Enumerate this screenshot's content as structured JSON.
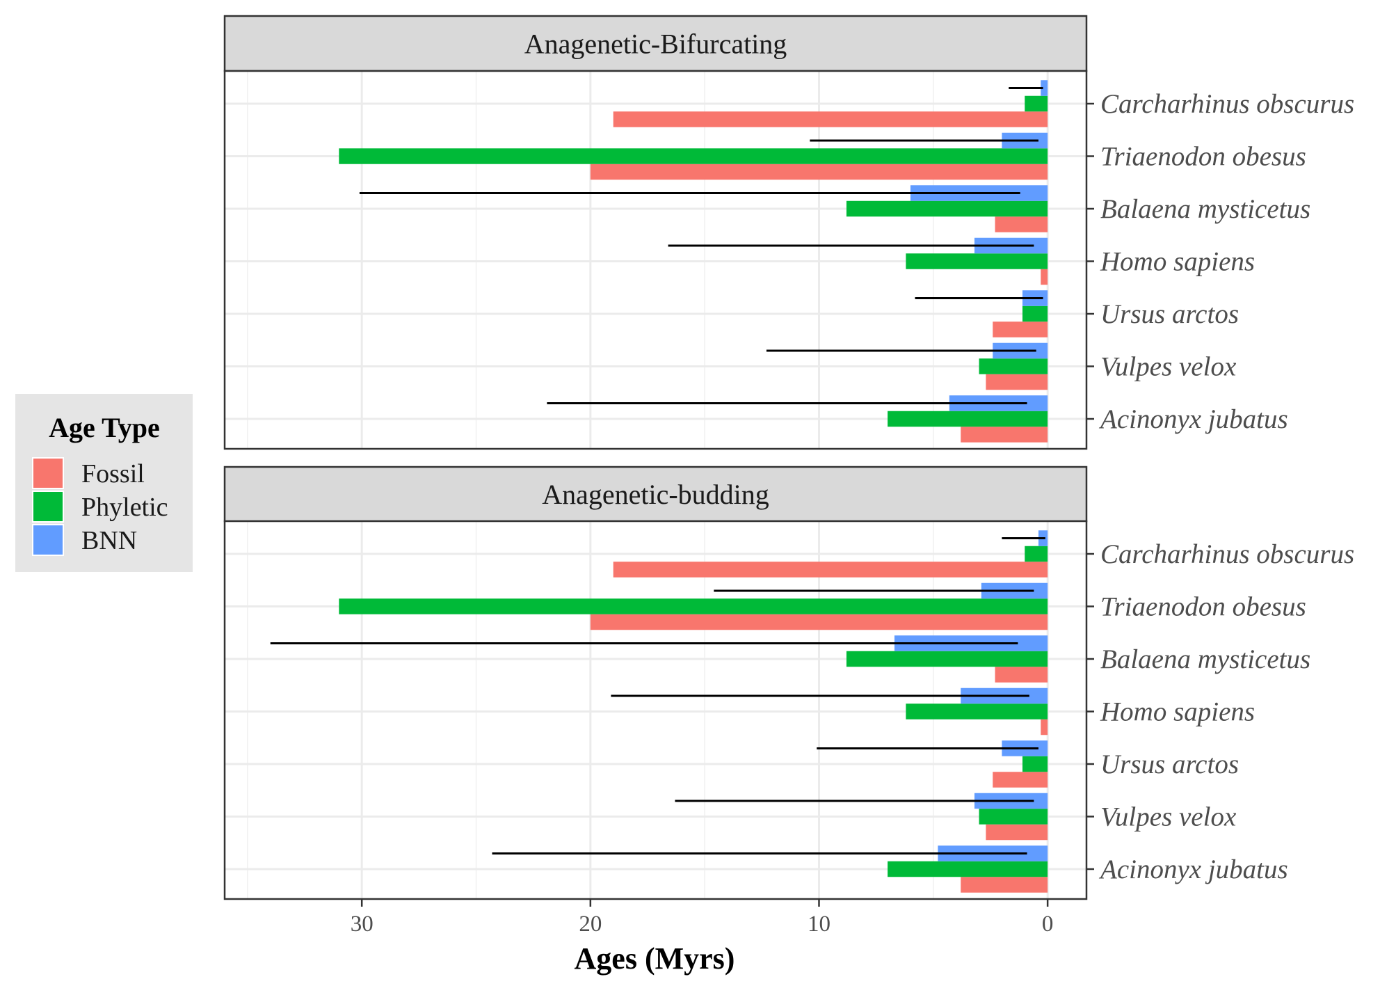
{
  "colors": {
    "Fossil": "#F8766D",
    "Phyletic": "#00BA38",
    "BNN": "#619CFF",
    "errorbar": "#000000"
  },
  "legend": {
    "title": "Age Type",
    "entries": [
      "Fossil",
      "Phyletic",
      "BNN"
    ]
  },
  "chart_data": {
    "type": "bar",
    "orientation": "horizontal",
    "x_reversed": true,
    "xlabel": "Ages (Myrs)",
    "xlim": [
      36,
      -1.7
    ],
    "xticks": [
      30,
      20,
      10,
      0
    ],
    "categories": [
      "Carcharhinus obscurus",
      "Triaenodon obesus",
      "Balaena mysticetus",
      "Homo sapiens",
      "Ursus arctos",
      "Vulpes velox",
      "Acinonyx jubatus"
    ],
    "legend_position": "left",
    "grid": true,
    "panels": [
      {
        "title": "Anagenetic-Bifurcating",
        "series": [
          {
            "name": "Fossil",
            "values": [
              19,
              20,
              2.3,
              0.3,
              2.4,
              2.7,
              3.8
            ]
          },
          {
            "name": "Phyletic",
            "values": [
              1.0,
              31,
              8.8,
              6.2,
              1.1,
              3.0,
              7.0
            ]
          },
          {
            "name": "BNN",
            "values": [
              0.3,
              2.0,
              6.0,
              3.2,
              1.1,
              2.4,
              4.3
            ]
          }
        ],
        "bnn_interval": [
          [
            0.2,
            1.7
          ],
          [
            0.4,
            10.4
          ],
          [
            1.2,
            30.1
          ],
          [
            0.6,
            16.6
          ],
          [
            0.2,
            5.8
          ],
          [
            0.5,
            12.3
          ],
          [
            0.9,
            21.9
          ]
        ]
      },
      {
        "title": "Anagenetic-budding",
        "series": [
          {
            "name": "Fossil",
            "values": [
              19,
              20,
              2.3,
              0.3,
              2.4,
              2.7,
              3.8
            ]
          },
          {
            "name": "Phyletic",
            "values": [
              1.0,
              31,
              8.8,
              6.2,
              1.1,
              3.0,
              7.0
            ]
          },
          {
            "name": "BNN",
            "values": [
              0.4,
              2.9,
              6.7,
              3.8,
              2.0,
              3.2,
              4.8
            ]
          }
        ],
        "bnn_interval": [
          [
            0.1,
            2.0
          ],
          [
            0.6,
            14.6
          ],
          [
            1.3,
            34.0
          ],
          [
            0.8,
            19.1
          ],
          [
            0.4,
            10.1
          ],
          [
            0.6,
            16.3
          ],
          [
            0.9,
            24.3
          ]
        ]
      }
    ]
  }
}
